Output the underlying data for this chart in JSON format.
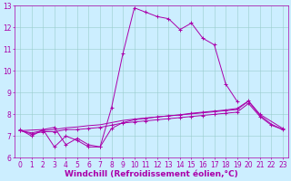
{
  "xlabel": "Windchill (Refroidissement éolien,°C)",
  "bg_color": "#cceeff",
  "line_color": "#aa00aa",
  "xlim": [
    -0.5,
    23.5
  ],
  "ylim": [
    6,
    13
  ],
  "xticks": [
    0,
    1,
    2,
    3,
    4,
    5,
    6,
    7,
    8,
    9,
    10,
    11,
    12,
    13,
    14,
    15,
    16,
    17,
    18,
    19,
    20,
    21,
    22,
    23
  ],
  "yticks": [
    6,
    7,
    8,
    9,
    10,
    11,
    12,
    13
  ],
  "grid_color": "#99cccc",
  "tick_fontsize": 5.5,
  "label_fontsize": 6.5,
  "series1_x": [
    0,
    1,
    2,
    3,
    4,
    5,
    6,
    7,
    8,
    9,
    10,
    11,
    12,
    13,
    14,
    15,
    16,
    17,
    18,
    19
  ],
  "series1_y": [
    7.3,
    7.0,
    7.3,
    6.5,
    7.0,
    6.8,
    6.5,
    6.5,
    8.3,
    10.8,
    12.9,
    12.7,
    12.5,
    12.4,
    11.9,
    12.2,
    11.5,
    11.2,
    9.4,
    8.6
  ],
  "series2_x": [
    0,
    1,
    2,
    3,
    4,
    5,
    6,
    7,
    8,
    9,
    10,
    11,
    12,
    13,
    14,
    15,
    16,
    17,
    18,
    19,
    20,
    21,
    22,
    23
  ],
  "series2_y": [
    7.25,
    7.1,
    7.2,
    7.2,
    7.3,
    7.3,
    7.35,
    7.4,
    7.5,
    7.6,
    7.65,
    7.7,
    7.75,
    7.8,
    7.85,
    7.9,
    7.95,
    8.0,
    8.05,
    8.1,
    8.5,
    7.9,
    7.5,
    7.3
  ],
  "series3_x": [
    0,
    1,
    2,
    3,
    4,
    5,
    6,
    7,
    8,
    9,
    10,
    11,
    12,
    13,
    14,
    15,
    16,
    17,
    18,
    19,
    20,
    21,
    22,
    23
  ],
  "series3_y": [
    7.25,
    7.15,
    7.25,
    7.3,
    7.38,
    7.42,
    7.48,
    7.52,
    7.62,
    7.72,
    7.78,
    7.83,
    7.88,
    7.93,
    7.97,
    8.02,
    8.07,
    8.12,
    8.17,
    8.22,
    8.6,
    7.95,
    7.55,
    7.3
  ],
  "series4_x": [
    0,
    2,
    3,
    4,
    5,
    6,
    7,
    8,
    9,
    10,
    11,
    12,
    13,
    14,
    15,
    16,
    17,
    18,
    19,
    20,
    21,
    23
  ],
  "series4_y": [
    7.25,
    7.3,
    7.4,
    6.6,
    6.9,
    6.6,
    6.5,
    7.35,
    7.62,
    7.75,
    7.82,
    7.88,
    7.93,
    7.98,
    8.05,
    8.1,
    8.15,
    8.2,
    8.27,
    8.62,
    8.0,
    7.35
  ]
}
